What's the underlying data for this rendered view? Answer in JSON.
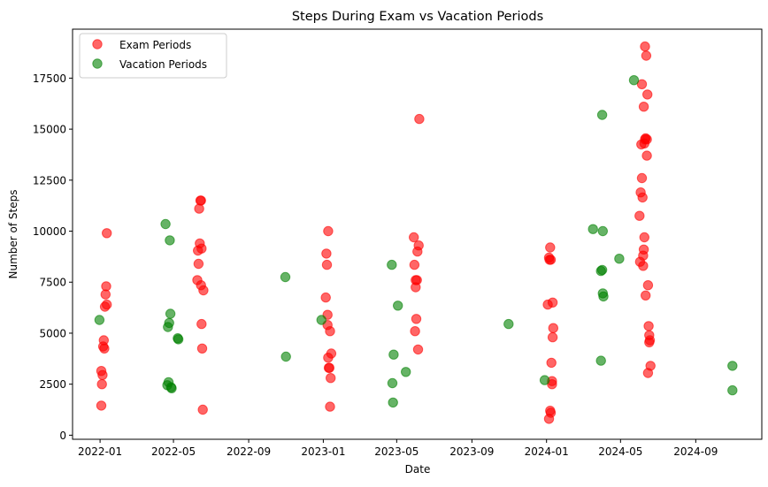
{
  "chart_data": {
    "type": "scatter",
    "title": "Steps During Exam vs Vacation Periods",
    "xlabel": "Date",
    "ylabel": "Number of Steps",
    "xlim": [
      "2021-11-17",
      "2024-12-18"
    ],
    "ylim": [
      -200,
      19900
    ],
    "x_ticks": [
      "2022-01",
      "2022-05",
      "2022-09",
      "2023-01",
      "2023-05",
      "2023-09",
      "2024-01",
      "2024-05",
      "2024-09"
    ],
    "x_tick_dates": [
      "2022-01-01",
      "2022-05-01",
      "2022-09-01",
      "2023-01-01",
      "2023-05-01",
      "2023-09-01",
      "2024-01-01",
      "2024-05-01",
      "2024-09-01"
    ],
    "y_ticks": [
      0,
      2500,
      5000,
      7500,
      10000,
      12500,
      15000,
      17500
    ],
    "grid": false,
    "legend_position": "top-left",
    "series": [
      {
        "name": "Exam Periods",
        "color": "#ff0000",
        "points": [
          {
            "x": "2022-01-03",
            "y": 3150
          },
          {
            "x": "2022-01-03",
            "y": 1450
          },
          {
            "x": "2022-01-04",
            "y": 2500
          },
          {
            "x": "2022-01-05",
            "y": 2950
          },
          {
            "x": "2022-01-06",
            "y": 4350
          },
          {
            "x": "2022-01-07",
            "y": 4650
          },
          {
            "x": "2022-01-08",
            "y": 4250
          },
          {
            "x": "2022-01-09",
            "y": 6300
          },
          {
            "x": "2022-01-10",
            "y": 6900
          },
          {
            "x": "2022-01-11",
            "y": 7300
          },
          {
            "x": "2022-01-12",
            "y": 6400
          },
          {
            "x": "2022-01-12",
            "y": 9900
          },
          {
            "x": "2022-06-09",
            "y": 7600
          },
          {
            "x": "2022-06-10",
            "y": 9050
          },
          {
            "x": "2022-06-11",
            "y": 8400
          },
          {
            "x": "2022-06-12",
            "y": 11100
          },
          {
            "x": "2022-06-13",
            "y": 9400
          },
          {
            "x": "2022-06-14",
            "y": 11500
          },
          {
            "x": "2022-06-15",
            "y": 11500
          },
          {
            "x": "2022-06-15",
            "y": 7350
          },
          {
            "x": "2022-06-16",
            "y": 9150
          },
          {
            "x": "2022-06-16",
            "y": 5450
          },
          {
            "x": "2022-06-17",
            "y": 4250
          },
          {
            "x": "2022-06-18",
            "y": 1250
          },
          {
            "x": "2022-06-19",
            "y": 7100
          },
          {
            "x": "2023-01-05",
            "y": 6750
          },
          {
            "x": "2023-01-06",
            "y": 8900
          },
          {
            "x": "2023-01-07",
            "y": 8350
          },
          {
            "x": "2023-01-08",
            "y": 5400
          },
          {
            "x": "2023-01-08",
            "y": 5900
          },
          {
            "x": "2023-01-09",
            "y": 3800
          },
          {
            "x": "2023-01-09",
            "y": 10000
          },
          {
            "x": "2023-01-10",
            "y": 3300
          },
          {
            "x": "2023-01-11",
            "y": 3300
          },
          {
            "x": "2023-01-12",
            "y": 5100
          },
          {
            "x": "2023-01-12",
            "y": 1400
          },
          {
            "x": "2023-01-13",
            "y": 2800
          },
          {
            "x": "2023-01-14",
            "y": 4000
          },
          {
            "x": "2023-05-29",
            "y": 9700
          },
          {
            "x": "2023-05-30",
            "y": 8350
          },
          {
            "x": "2023-05-31",
            "y": 5100
          },
          {
            "x": "2023-06-01",
            "y": 7250
          },
          {
            "x": "2023-06-01",
            "y": 7600
          },
          {
            "x": "2023-06-02",
            "y": 5700
          },
          {
            "x": "2023-06-03",
            "y": 7600
          },
          {
            "x": "2023-06-04",
            "y": 9000
          },
          {
            "x": "2023-06-05",
            "y": 4200
          },
          {
            "x": "2023-06-06",
            "y": 9300
          },
          {
            "x": "2023-06-07",
            "y": 15500
          },
          {
            "x": "2024-01-03",
            "y": 6400
          },
          {
            "x": "2024-01-05",
            "y": 8700
          },
          {
            "x": "2024-01-05",
            "y": 800
          },
          {
            "x": "2024-01-06",
            "y": 8600
          },
          {
            "x": "2024-01-07",
            "y": 1200
          },
          {
            "x": "2024-01-07",
            "y": 9200
          },
          {
            "x": "2024-01-08",
            "y": 8600
          },
          {
            "x": "2024-01-08",
            "y": 1100
          },
          {
            "x": "2024-01-09",
            "y": 3550
          },
          {
            "x": "2024-01-10",
            "y": 2650
          },
          {
            "x": "2024-01-10",
            "y": 2500
          },
          {
            "x": "2024-01-11",
            "y": 4800
          },
          {
            "x": "2024-01-11",
            "y": 6500
          },
          {
            "x": "2024-01-12",
            "y": 5250
          },
          {
            "x": "2024-06-01",
            "y": 10750
          },
          {
            "x": "2024-06-02",
            "y": 8500
          },
          {
            "x": "2024-06-03",
            "y": 11900
          },
          {
            "x": "2024-06-04",
            "y": 14250
          },
          {
            "x": "2024-06-05",
            "y": 12600
          },
          {
            "x": "2024-06-05",
            "y": 17200
          },
          {
            "x": "2024-06-06",
            "y": 11650
          },
          {
            "x": "2024-06-07",
            "y": 8800
          },
          {
            "x": "2024-06-07",
            "y": 8300
          },
          {
            "x": "2024-06-08",
            "y": 9100
          },
          {
            "x": "2024-06-08",
            "y": 16100
          },
          {
            "x": "2024-06-09",
            "y": 9700
          },
          {
            "x": "2024-06-09",
            "y": 14300
          },
          {
            "x": "2024-06-10",
            "y": 19050
          },
          {
            "x": "2024-06-10",
            "y": 14500
          },
          {
            "x": "2024-06-11",
            "y": 6850
          },
          {
            "x": "2024-06-11",
            "y": 14550
          },
          {
            "x": "2024-06-12",
            "y": 18600
          },
          {
            "x": "2024-06-13",
            "y": 14500
          },
          {
            "x": "2024-06-13",
            "y": 13700
          },
          {
            "x": "2024-06-14",
            "y": 16700
          },
          {
            "x": "2024-06-15",
            "y": 7350
          },
          {
            "x": "2024-06-15",
            "y": 3050
          },
          {
            "x": "2024-06-16",
            "y": 5350
          },
          {
            "x": "2024-06-17",
            "y": 4900
          },
          {
            "x": "2024-06-17",
            "y": 4550
          },
          {
            "x": "2024-06-18",
            "y": 4650
          },
          {
            "x": "2024-06-19",
            "y": 3400
          }
        ]
      },
      {
        "name": "Vacation Periods",
        "color": "#008000",
        "points": [
          {
            "x": "2021-12-31",
            "y": 5650
          },
          {
            "x": "2022-04-18",
            "y": 10350
          },
          {
            "x": "2022-04-21",
            "y": 2450
          },
          {
            "x": "2022-04-22",
            "y": 5300
          },
          {
            "x": "2022-04-23",
            "y": 2600
          },
          {
            "x": "2022-04-24",
            "y": 5500
          },
          {
            "x": "2022-04-25",
            "y": 9550
          },
          {
            "x": "2022-04-26",
            "y": 5950
          },
          {
            "x": "2022-04-27",
            "y": 2350
          },
          {
            "x": "2022-04-28",
            "y": 2300
          },
          {
            "x": "2022-05-08",
            "y": 4750
          },
          {
            "x": "2022-05-09",
            "y": 4700
          },
          {
            "x": "2022-10-31",
            "y": 7750
          },
          {
            "x": "2022-11-01",
            "y": 3850
          },
          {
            "x": "2022-12-29",
            "y": 5650
          },
          {
            "x": "2023-04-23",
            "y": 8350
          },
          {
            "x": "2023-04-24",
            "y": 2550
          },
          {
            "x": "2023-04-25",
            "y": 1600
          },
          {
            "x": "2023-04-26",
            "y": 3950
          },
          {
            "x": "2023-05-03",
            "y": 6350
          },
          {
            "x": "2023-05-16",
            "y": 3100
          },
          {
            "x": "2023-10-31",
            "y": 5450
          },
          {
            "x": "2023-12-29",
            "y": 2700
          },
          {
            "x": "2024-03-17",
            "y": 10100
          },
          {
            "x": "2024-03-30",
            "y": 8050
          },
          {
            "x": "2024-03-30",
            "y": 3650
          },
          {
            "x": "2024-04-01",
            "y": 8100
          },
          {
            "x": "2024-04-01",
            "y": 15700
          },
          {
            "x": "2024-04-02",
            "y": 10000
          },
          {
            "x": "2024-04-02",
            "y": 6950
          },
          {
            "x": "2024-04-03",
            "y": 6800
          },
          {
            "x": "2024-04-29",
            "y": 8650
          },
          {
            "x": "2024-05-23",
            "y": 17400
          },
          {
            "x": "2024-10-31",
            "y": 3400
          },
          {
            "x": "2024-10-31",
            "y": 2200
          }
        ]
      }
    ]
  }
}
